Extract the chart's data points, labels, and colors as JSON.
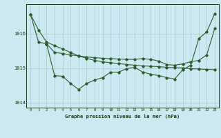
{
  "title": "Graphe pression niveau de la mer (hPa)",
  "background_color": "#cce8f0",
  "grid_color": "#aac8d8",
  "line_color": "#2d5c2d",
  "hours": [
    0,
    1,
    2,
    3,
    4,
    5,
    6,
    7,
    8,
    9,
    10,
    11,
    12,
    13,
    14,
    15,
    16,
    17,
    18,
    19,
    20,
    21,
    22,
    23
  ],
  "series1": [
    1016.55,
    1016.1,
    1015.75,
    1015.65,
    1015.55,
    1015.45,
    1015.35,
    1015.28,
    1015.22,
    1015.18,
    1015.15,
    1015.13,
    1015.1,
    1015.08,
    1015.06,
    1015.05,
    1015.04,
    1015.02,
    1015.01,
    1015.0,
    1014.98,
    1014.97,
    1014.96,
    1014.95
  ],
  "series2": [
    1016.55,
    1015.75,
    1015.7,
    1015.45,
    1015.42,
    1015.38,
    1015.35,
    1015.32,
    1015.3,
    1015.28,
    1015.27,
    1015.26,
    1015.25,
    1015.25,
    1015.27,
    1015.25,
    1015.2,
    1015.1,
    1015.08,
    1015.12,
    1015.18,
    1015.22,
    1015.38,
    1016.15
  ],
  "series3": [
    null,
    null,
    1015.7,
    1014.78,
    1014.76,
    1014.55,
    1014.38,
    1014.55,
    1014.65,
    1014.72,
    1014.88,
    1014.88,
    1014.98,
    1015.02,
    1014.88,
    1014.82,
    1014.78,
    1014.72,
    1014.68,
    1014.95,
    1015.08,
    1015.85,
    1016.05,
    1016.58
  ],
  "ylim": [
    1013.85,
    1016.85
  ],
  "yticks": [
    1014,
    1015,
    1016
  ],
  "xlim": [
    -0.5,
    23.5
  ],
  "figwidth": 3.2,
  "figheight": 2.0,
  "dpi": 100
}
